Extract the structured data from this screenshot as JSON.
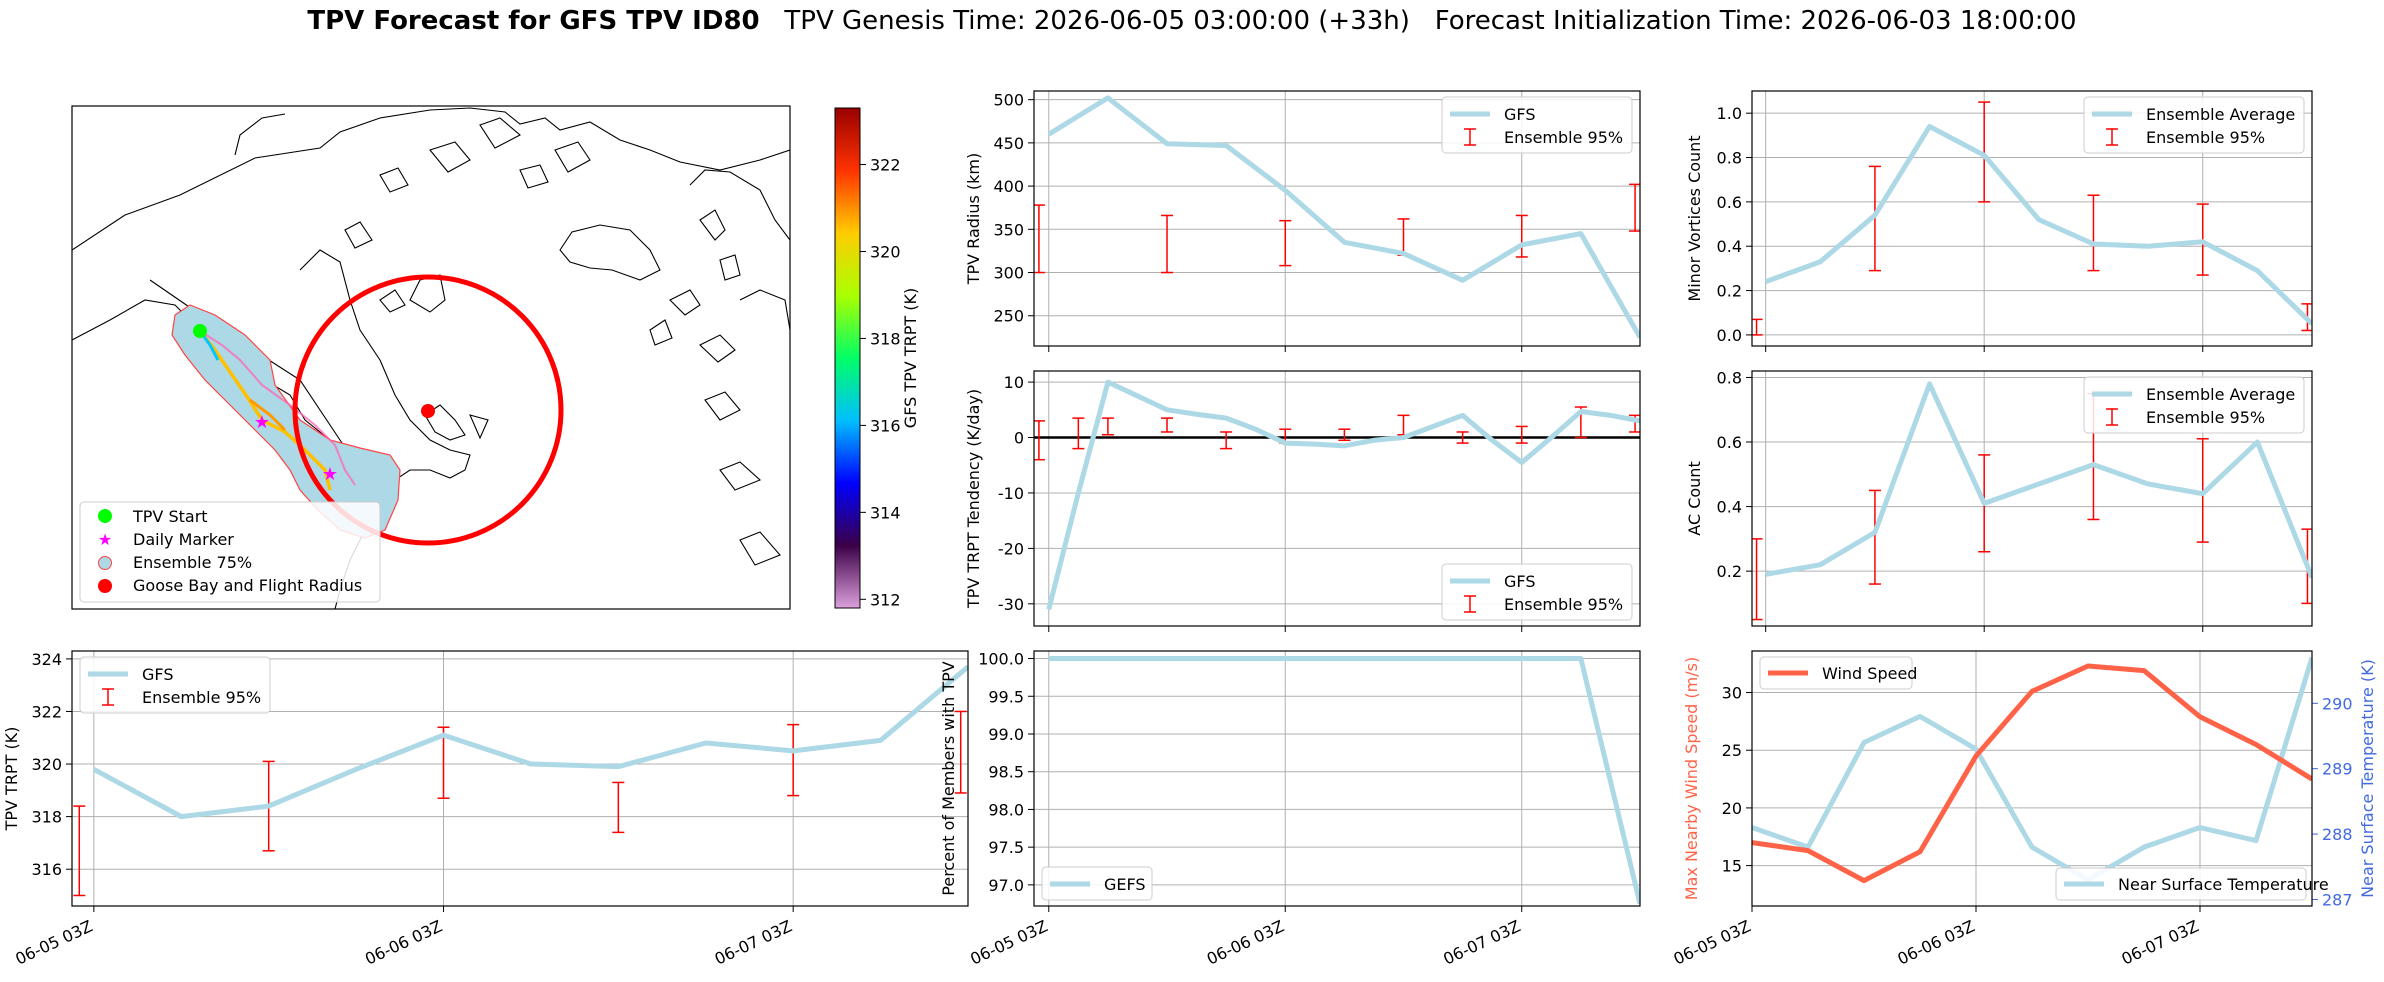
{
  "figure": {
    "title_bold": "TPV Forecast for GFS TPV ID80",
    "title_rest": "   TPV Genesis Time: 2026-06-05 03:00:00 (+33h)   Forecast Initialization Time: 2026-06-03 18:00:00"
  },
  "time_ticks": [
    "06-05 03Z",
    "06-06 03Z",
    "06-07 03Z"
  ],
  "colors": {
    "gfs_line": "#add8e6",
    "error_bar": "#ff0000",
    "wind": "#ff6347",
    "temp_axis": "#4169e1",
    "track_fill": "#add8e6"
  },
  "map": {
    "legend": [
      "TPV Start",
      "Daily Marker",
      "Ensemble 75%",
      "Goose Bay and Flight Radius"
    ],
    "colorbar_label": "GFS TPV TRPT (K)",
    "colorbar_ticks": [
      312,
      314,
      316,
      318,
      320,
      322
    ],
    "colorbar_range": [
      311.8,
      323.3
    ],
    "colorbar_colors": [
      "#dda0dd",
      "#3b0047",
      "#0000ff",
      "#00bfff",
      "#00ff66",
      "#aaff00",
      "#ffcc00",
      "#ff3300",
      "#990000"
    ]
  },
  "chart_data": [
    {
      "id": "radius",
      "type": "line",
      "ylabel": "TPV Radius (km)",
      "ylim": [
        215,
        510
      ],
      "yticks": [
        250,
        300,
        350,
        400,
        450,
        500
      ],
      "legend": [
        "GFS",
        "Ensemble 95%"
      ],
      "legend_loc": "upper right",
      "x_hours": [
        0,
        6,
        12,
        18,
        24,
        30,
        36,
        42,
        48,
        54,
        60
      ],
      "gfs": [
        460,
        502,
        449,
        447,
        395,
        335,
        322,
        291,
        332,
        345,
        225
      ],
      "err_x": [
        -1,
        12,
        24,
        36,
        48,
        59.5
      ],
      "err_low": [
        300,
        300,
        308,
        320,
        318,
        348
      ],
      "err_high": [
        378,
        366,
        360,
        362,
        366,
        402
      ]
    },
    {
      "id": "minor",
      "type": "line",
      "ylabel": "Minor Vortices Count",
      "ylim": [
        -0.05,
        1.1
      ],
      "yticks": [
        0.0,
        0.2,
        0.4,
        0.6,
        0.8,
        1.0
      ],
      "legend": [
        "Ensemble Average",
        "Ensemble 95%"
      ],
      "legend_loc": "upper right",
      "x_hours": [
        0,
        6,
        12,
        18,
        24,
        30,
        36,
        42,
        48,
        54,
        60
      ],
      "gfs": [
        0.24,
        0.33,
        0.54,
        0.94,
        0.81,
        0.52,
        0.41,
        0.4,
        0.42,
        0.29,
        0.05
      ],
      "err_x": [
        -1,
        12,
        24,
        36,
        48,
        59.5
      ],
      "err_low": [
        0.0,
        0.29,
        0.6,
        0.29,
        0.27,
        0.02
      ],
      "err_high": [
        0.07,
        0.76,
        1.05,
        0.63,
        0.59,
        0.14
      ]
    },
    {
      "id": "tendency",
      "type": "line",
      "ylabel": "TPV TRPT Tendency (K/day)",
      "ylim": [
        -34,
        12
      ],
      "yticks": [
        -30,
        -20,
        -10,
        0,
        10
      ],
      "legend": [
        "GFS",
        "Ensemble 95%"
      ],
      "legend_loc": "lower right",
      "zero_line": true,
      "x_hours": [
        0,
        3,
        6,
        9,
        12,
        15,
        18,
        21,
        24,
        27,
        30,
        33,
        36,
        39,
        42,
        45,
        48,
        51,
        54,
        57,
        60
      ],
      "gfs": [
        -31,
        -10,
        10,
        7.5,
        5,
        4.2,
        3.5,
        1.5,
        -1,
        -1.2,
        -1.5,
        -0.5,
        0,
        2,
        4,
        -0.5,
        -4.5,
        0,
        4.7,
        4,
        3
      ],
      "err_x": [
        -1,
        3,
        6,
        12,
        18,
        24,
        30,
        36,
        42,
        48,
        54,
        59.5
      ],
      "err_low": [
        -4,
        -2,
        0.5,
        1,
        -2,
        -1,
        -0.5,
        0.5,
        -1,
        -1,
        0,
        1
      ],
      "err_high": [
        3,
        3.5,
        3.5,
        3.5,
        1,
        1.5,
        1.5,
        4,
        1,
        2,
        5.5
      ],
      "err_high_last": 4
    },
    {
      "id": "ac",
      "type": "line",
      "ylabel": "AC Count",
      "ylim": [
        0.03,
        0.82
      ],
      "yticks": [
        0.2,
        0.4,
        0.6,
        0.8
      ],
      "legend": [
        "Ensemble Average",
        "Ensemble 95%"
      ],
      "legend_loc": "upper right",
      "x_hours": [
        0,
        6,
        12,
        18,
        24,
        30,
        36,
        42,
        48,
        54,
        60
      ],
      "gfs": [
        0.19,
        0.22,
        0.32,
        0.78,
        0.41,
        0.47,
        0.53,
        0.47,
        0.44,
        0.6,
        0.18
      ],
      "err_x": [
        -1,
        12,
        24,
        36,
        48,
        59.5
      ],
      "err_low": [
        0.05,
        0.16,
        0.26,
        0.36,
        0.29,
        0.1
      ],
      "err_high": [
        0.3,
        0.45,
        0.56,
        0.75,
        0.61,
        0.33
      ]
    },
    {
      "id": "trpt",
      "type": "line",
      "ylabel": "TPV TRPT (K)",
      "ylim": [
        314.6,
        324.3
      ],
      "yticks": [
        316,
        318,
        320,
        322,
        324
      ],
      "legend": [
        "GFS",
        "Ensemble 95%"
      ],
      "legend_loc": "upper left",
      "x_hours": [
        0,
        6,
        12,
        18,
        24,
        30,
        36,
        42,
        48,
        54,
        60
      ],
      "gfs": [
        319.8,
        318.0,
        318.4,
        319.8,
        321.1,
        320.0,
        319.9,
        320.8,
        320.5,
        320.9,
        323.7
      ],
      "err_x": [
        -1,
        12,
        24,
        36,
        48,
        59.5
      ],
      "err_low": [
        315.0,
        316.7,
        318.7,
        317.4,
        318.8,
        318.9
      ],
      "err_high": [
        318.4,
        320.1,
        321.4,
        319.3,
        321.5,
        322.0
      ]
    },
    {
      "id": "members",
      "type": "line",
      "ylabel": "Percent of Members with TPV",
      "ylim": [
        96.72,
        100.1
      ],
      "yticks": [
        97.0,
        97.5,
        98.0,
        98.5,
        99.0,
        99.5,
        100.0
      ],
      "legend": [
        "GEFS"
      ],
      "legend_loc": "lower left",
      "x_hours": [
        0,
        6,
        12,
        18,
        24,
        30,
        36,
        42,
        48,
        54,
        60
      ],
      "gfs": [
        100,
        100,
        100,
        100,
        100,
        100,
        100,
        100,
        100,
        100,
        96.75
      ]
    },
    {
      "id": "wind_temp",
      "type": "line",
      "ylabel": "Max Nearby Wind Speed (m/s)",
      "ylabel_right": "Near Surface Temperature (K)",
      "ylim": [
        11.5,
        33.6
      ],
      "yticks": [
        15,
        20,
        25,
        30
      ],
      "ylim_right": [
        286.9,
        290.8
      ],
      "yticks_right": [
        287,
        288,
        289,
        290
      ],
      "legend": [
        "Wind Speed"
      ],
      "legend_right": [
        "Near Surface Temperature"
      ],
      "x_hours": [
        0,
        6,
        12,
        18,
        24,
        30,
        36,
        42,
        48,
        54,
        60
      ],
      "wind": [
        17.0,
        16.3,
        13.7,
        16.2,
        24.5,
        30.1,
        32.3,
        31.9,
        27.9,
        25.5,
        22.5
      ],
      "temp": [
        288.1,
        287.8,
        289.4,
        289.8,
        289.3,
        287.8,
        287.3,
        287.8,
        288.1,
        287.9,
        290.7
      ]
    }
  ]
}
